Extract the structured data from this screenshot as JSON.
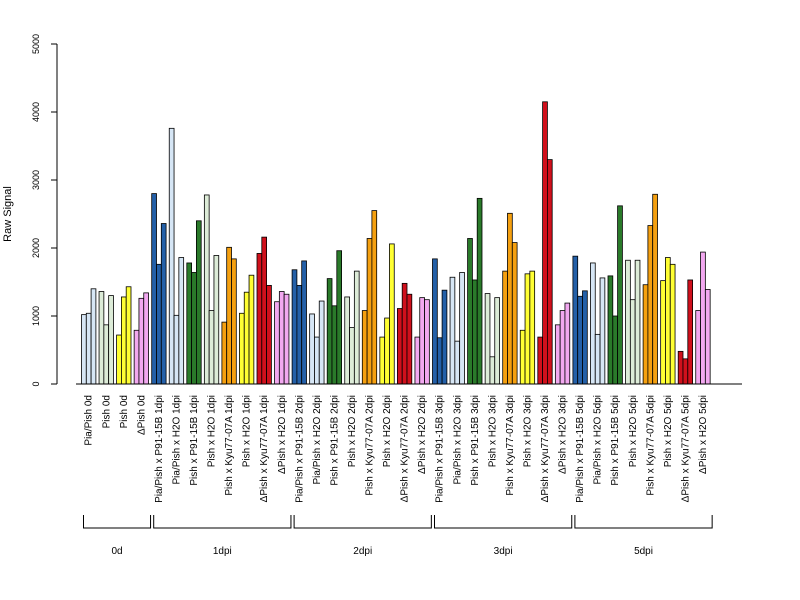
{
  "chart_data": {
    "type": "bar",
    "title": "",
    "xlabel": "",
    "ylabel": "Raw Signal",
    "ylim": [
      0,
      5000
    ],
    "yticks": [
      0,
      1000,
      2000,
      3000,
      4000,
      5000
    ],
    "grid": false,
    "bars_per_group": 3,
    "categories": [
      "Pia/Pish 0d",
      "Pish 0d",
      "Pish 0d",
      "ΔPish 0d",
      "Pia/Pish x P91-15B 1dpi",
      "Pia/Pish x H2O 1dpi",
      "Pish x P91-15B 1dpi",
      "Pish x H2O 1dpi",
      "Pish x Kyu77-07A 1dpi",
      "Pish x H2O 1dpi",
      "ΔPish x Kyu77-07A 1dpi",
      "ΔPish x H2O 1dpi",
      "Pia/Pish x P91-15B 2dpi",
      "Pia/Pish x H2O 2dpi",
      "Pish x P91-15B 2dpi",
      "Pish x H2O 2dpi",
      "Pish x Kyu77-07A 2dpi",
      "Pish x H2O 2dpi",
      "ΔPish x Kyu77-07A 2dpi",
      "ΔPish x H2O 2dpi",
      "Pia/Pish x P91-15B 3dpi",
      "Pia/Pish x H2O 3dpi",
      "Pish x P91-15B 3dpi",
      "Pish x H2O 3dpi",
      "Pish x Kyu77-07A 3dpi",
      "Pish x H2O 3dpi",
      "ΔPish x Kyu77-07A 3dpi",
      "ΔPish x H2O 3dpi",
      "Pia/Pish x P91-15B 5dpi",
      "Pia/Pish x H2O 5dpi",
      "Pish x P91-15B 5dpi",
      "Pish x H2O 5dpi",
      "Pish x Kyu77-07A 5dpi",
      "Pish x H2O 5dpi",
      "ΔPish x Kyu77-07A 5dpi",
      "ΔPish x H2O 5dpi"
    ],
    "colors": [
      "#d6e6f5",
      "#ddecd8",
      "#ffff33",
      "#f2a8f0",
      "#2460a8",
      "#d6e6f5",
      "#2a7a2a",
      "#ddecd8",
      "#f5a010",
      "#ffff33",
      "#d0101c",
      "#f2a8f0",
      "#2460a8",
      "#d6e6f5",
      "#2a7a2a",
      "#ddecd8",
      "#f5a010",
      "#ffff33",
      "#d0101c",
      "#f2a8f0",
      "#2460a8",
      "#d6e6f5",
      "#2a7a2a",
      "#ddecd8",
      "#f5a010",
      "#ffff33",
      "#d0101c",
      "#f2a8f0",
      "#2460a8",
      "#d6e6f5",
      "#2a7a2a",
      "#ddecd8",
      "#f5a010",
      "#ffff33",
      "#d0101c",
      "#f2a8f0"
    ],
    "values": [
      [
        1020,
        1040,
        1400
      ],
      [
        1360,
        870,
        1300
      ],
      [
        720,
        1280,
        1430
      ],
      [
        790,
        1260,
        1340
      ],
      [
        2800,
        1760,
        2360
      ],
      [
        3760,
        1010,
        1860
      ],
      [
        1780,
        1640,
        2400
      ],
      [
        2780,
        1080,
        1890
      ],
      [
        910,
        2010,
        1840
      ],
      [
        1040,
        1350,
        1600
      ],
      [
        1920,
        2160,
        1450
      ],
      [
        1210,
        1360,
        1320
      ],
      [
        1680,
        1450,
        1810
      ],
      [
        1030,
        690,
        1220
      ],
      [
        1550,
        1150,
        1960
      ],
      [
        1280,
        830,
        1660
      ],
      [
        1080,
        2140,
        2550
      ],
      [
        690,
        970,
        2060
      ],
      [
        1110,
        1480,
        1320
      ],
      [
        690,
        1270,
        1240
      ],
      [
        1840,
        680,
        1380
      ],
      [
        1570,
        630,
        1640
      ],
      [
        2140,
        1530,
        2730
      ],
      [
        1330,
        400,
        1270
      ],
      [
        1660,
        2510,
        2080
      ],
      [
        790,
        1620,
        1660
      ],
      [
        690,
        4150,
        3300
      ],
      [
        870,
        1080,
        1190
      ],
      [
        1880,
        1290,
        1370
      ],
      [
        1780,
        730,
        1560
      ],
      [
        1590,
        1000,
        2620
      ],
      [
        1820,
        1240,
        1820
      ],
      [
        1460,
        2330,
        2790
      ],
      [
        1520,
        1860,
        1760
      ],
      [
        480,
        370,
        1530
      ],
      [
        1080,
        1940,
        1390
      ]
    ],
    "time_groups": [
      {
        "label": "0d",
        "start": 0,
        "end": 3
      },
      {
        "label": "1dpi",
        "start": 4,
        "end": 11
      },
      {
        "label": "2dpi",
        "start": 12,
        "end": 19
      },
      {
        "label": "3dpi",
        "start": 20,
        "end": 27
      },
      {
        "label": "5dpi",
        "start": 28,
        "end": 35
      }
    ]
  }
}
